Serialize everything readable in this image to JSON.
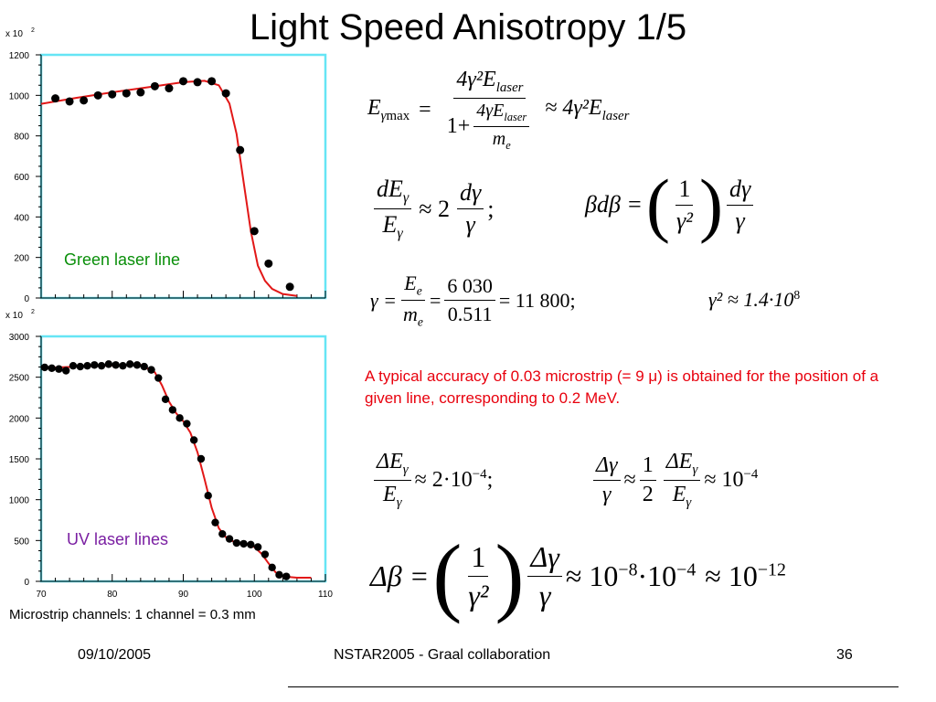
{
  "slide": {
    "title": "Light Speed Anisotropy 1/5",
    "footer": {
      "date": "09/10/2005",
      "center": "NSTAR2005 - Graal collaboration",
      "page": "36"
    },
    "caption": "Microstrip channels: 1 channel = 0.3 mm",
    "note": "A typical accuracy of  0.03 microstrip (= 9 μ) is obtained for the position of a given line, corresponding to  0.2 MeV.",
    "colors": {
      "frame": "#66e5f5",
      "curve": "#e21818",
      "note": "#e8000d",
      "green_label": "#0a8f0a",
      "uv_label": "#7a1fa2"
    },
    "equations": {
      "e1_lhs": "E",
      "e1_lhs_sub1": "γ",
      "e1_lhs_sub2": "max",
      "e1_eq": "=",
      "e1_num": "4γ²E",
      "e1_num_sub": "laser",
      "e1_den_one": "1+",
      "e1_den_num": "4γE",
      "e1_den_num_sub": "laser",
      "e1_den_den": "m",
      "e1_den_den_sub": "e",
      "e1_approx": "≈ 4γ²E",
      "e1_approx_sub": "laser",
      "e2_num": "dE",
      "e2_num_sub": "γ",
      "e2_den": "E",
      "e2_den_sub": "γ",
      "e2_mid": "≈ 2",
      "e2_fnum": "dγ",
      "e2_fden": "γ",
      "e2_semi": ";",
      "e3_lhs": "βdβ =",
      "e3_inum": "1",
      "e3_iden": "γ²",
      "e3_fnum": "dγ",
      "e3_fden": "γ",
      "e4_lhs": "γ =",
      "e4_num": "E",
      "e4_num_sub": "e",
      "e4_den": "m",
      "e4_den_sub": "e",
      "e4_mid_eq": "=",
      "e4_num2": "6 030",
      "e4_den2": "0.511",
      "e4_rhs": "= 11 800;",
      "e5_lhs": "γ² ≈ 1.4·10",
      "e5_exp": "8",
      "e6_num": "ΔE",
      "e6_num_sub": "γ",
      "e6_den": "E",
      "e6_den_sub": "γ",
      "e6_rhs": "≈ 2·10",
      "e6_exp": "−4",
      "e6_semi": ";",
      "e7_num": "Δγ",
      "e7_den": "γ",
      "e7_approx": "≈",
      "e7_hnum": "1",
      "e7_hden": "2",
      "e7_num2": "ΔE",
      "e7_num2_sub": "γ",
      "e7_den2": "E",
      "e7_den2_sub": "γ",
      "e7_rhs": "≈ 10",
      "e7_exp": "−4",
      "e8_lhs": "Δβ =",
      "e8_inum": "1",
      "e8_iden": "γ²",
      "e8_fnum": "Δγ",
      "e8_fden": "γ",
      "e8_a": "≈ 10",
      "e8_a_exp": "−8",
      "e8_b": "·10",
      "e8_b_exp": "−4",
      "e8_c": "≈ 10",
      "e8_c_exp": "−12"
    }
  },
  "chart_data": [
    {
      "type": "scatter",
      "label": "Green laser line",
      "multiplier_label": "x 10",
      "multiplier_exp": "2",
      "ylim": [
        0,
        1200
      ],
      "yticks": [
        0,
        200,
        400,
        600,
        800,
        1000,
        1200
      ],
      "ytick_labels": [
        "0",
        "200",
        "400",
        "600",
        "800",
        "1000",
        "1200"
      ],
      "xlim": [
        70,
        110
      ],
      "points": [
        [
          72,
          985
        ],
        [
          74,
          970
        ],
        [
          76,
          975
        ],
        [
          78,
          1000
        ],
        [
          80,
          1005
        ],
        [
          82,
          1010
        ],
        [
          84,
          1015
        ],
        [
          86,
          1045
        ],
        [
          88,
          1035
        ],
        [
          90,
          1070
        ],
        [
          92,
          1065
        ],
        [
          94,
          1070
        ],
        [
          96,
          1010
        ],
        [
          98,
          730
        ],
        [
          100,
          330
        ],
        [
          102,
          170
        ],
        [
          105,
          55
        ]
      ],
      "fit": [
        [
          70,
          958
        ],
        [
          75,
          988
        ],
        [
          80,
          1015
        ],
        [
          85,
          1040
        ],
        [
          90,
          1065
        ],
        [
          93,
          1072
        ],
        [
          95,
          1050
        ],
        [
          96.5,
          960
        ],
        [
          97.5,
          810
        ],
        [
          98.5,
          570
        ],
        [
          99.5,
          330
        ],
        [
          100.5,
          160
        ],
        [
          101.5,
          85
        ],
        [
          102.5,
          45
        ],
        [
          104,
          20
        ],
        [
          106,
          10
        ]
      ]
    },
    {
      "type": "scatter",
      "label": "UV laser lines",
      "multiplier_label": "x 10",
      "multiplier_exp": "2",
      "ylim": [
        0,
        3000
      ],
      "yticks": [
        0,
        500,
        1000,
        1500,
        2000,
        2500,
        3000
      ],
      "ytick_labels": [
        "0",
        "500",
        "1000",
        "1500",
        "2000",
        "2500",
        "3000"
      ],
      "xlim": [
        70,
        110
      ],
      "xticks": [
        70,
        80,
        90,
        100,
        110
      ],
      "xtick_labels": [
        "70",
        "80",
        "90",
        "100",
        "110"
      ],
      "points": [
        [
          70.5,
          2620
        ],
        [
          71.5,
          2610
        ],
        [
          72.5,
          2600
        ],
        [
          73.5,
          2580
        ],
        [
          74.5,
          2640
        ],
        [
          75.5,
          2630
        ],
        [
          76.5,
          2640
        ],
        [
          77.5,
          2650
        ],
        [
          78.5,
          2640
        ],
        [
          79.5,
          2660
        ],
        [
          80.5,
          2650
        ],
        [
          81.5,
          2640
        ],
        [
          82.5,
          2660
        ],
        [
          83.5,
          2650
        ],
        [
          84.5,
          2630
        ],
        [
          85.5,
          2590
        ],
        [
          86.5,
          2490
        ],
        [
          87.5,
          2230
        ],
        [
          88.5,
          2100
        ],
        [
          89.5,
          2000
        ],
        [
          90.5,
          1930
        ],
        [
          91.5,
          1730
        ],
        [
          92.5,
          1500
        ],
        [
          93.5,
          1050
        ],
        [
          94.5,
          720
        ],
        [
          95.5,
          580
        ],
        [
          96.5,
          520
        ],
        [
          97.5,
          470
        ],
        [
          98.5,
          460
        ],
        [
          99.5,
          450
        ],
        [
          100.5,
          420
        ],
        [
          101.5,
          330
        ],
        [
          102.5,
          170
        ],
        [
          103.5,
          80
        ],
        [
          104.5,
          60
        ]
      ],
      "fit": [
        [
          70,
          2610
        ],
        [
          75,
          2630
        ],
        [
          80,
          2645
        ],
        [
          84,
          2650
        ],
        [
          86,
          2560
        ],
        [
          87,
          2400
        ],
        [
          88,
          2200
        ],
        [
          89,
          2060
        ],
        [
          90,
          1960
        ],
        [
          91,
          1820
        ],
        [
          92,
          1580
        ],
        [
          93,
          1250
        ],
        [
          94,
          900
        ],
        [
          95,
          650
        ],
        [
          96,
          540
        ],
        [
          97,
          490
        ],
        [
          98,
          465
        ],
        [
          99,
          450
        ],
        [
          100,
          420
        ],
        [
          101,
          340
        ],
        [
          102,
          220
        ],
        [
          103,
          110
        ],
        [
          104,
          60
        ],
        [
          106,
          45
        ],
        [
          108,
          45
        ]
      ]
    }
  ]
}
